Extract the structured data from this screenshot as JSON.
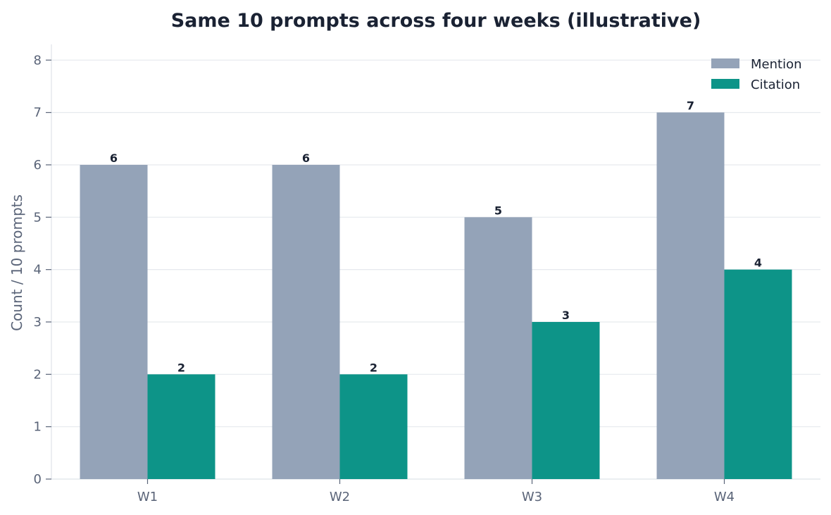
{
  "chart_data": {
    "type": "bar",
    "title": "Same 10 prompts across four weeks (illustrative)",
    "xlabel": "",
    "ylabel": "Count / 10 prompts",
    "categories": [
      "W1",
      "W2",
      "W3",
      "W4"
    ],
    "series": [
      {
        "name": "Mention",
        "values": [
          6,
          6,
          5,
          7
        ],
        "color": "#94a3b8"
      },
      {
        "name": "Citation",
        "values": [
          2,
          2,
          3,
          4
        ],
        "color": "#0d9488"
      }
    ],
    "ylim": [
      0,
      8.3
    ],
    "yticks": [
      0,
      1,
      2,
      3,
      4,
      5,
      6,
      7,
      8
    ],
    "grid": true,
    "legend": "top-right"
  }
}
